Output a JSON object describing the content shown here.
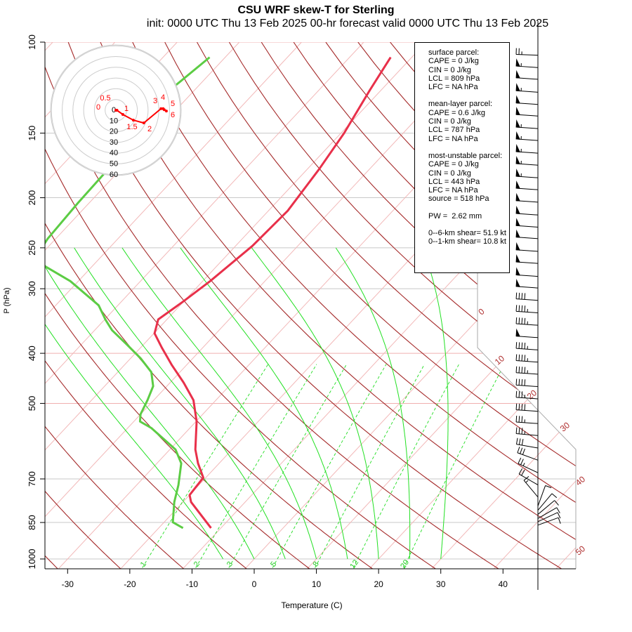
{
  "title": "CSU WRF skew-T for Sterling",
  "subtitle": "init: 0000 UTC Thu 13 Feb 2025    00-hr forecast valid 0000 UTC Thu 13 Feb 2025",
  "info_box": {
    "surface": [
      "surface parcel:",
      "CAPE = 0 J/kg",
      "CIN = 0 J/kg",
      "LCL = 809 hPa",
      "LFC = NA hPa"
    ],
    "mean_layer": [
      "mean-layer parcel:",
      "CAPE = 0.6 J/kg",
      "CIN = 0 J/kg",
      "LCL = 787 hPa",
      "LFC = NA hPa"
    ],
    "most_unstable": [
      "most-unstable parcel:",
      "CAPE = 0 J/kg",
      "CIN = 0 J/kg",
      "LCL = 443 hPa",
      "LFC = NA hPa",
      "source = 518 hPa"
    ],
    "pw": "PW =  2.62 mm",
    "shear": [
      "0--6-km shear= 51.9 kt",
      "0--1-km shear= 10.8 kt"
    ]
  },
  "chart_data": {
    "type": "skew-t",
    "xlabel": "Temperature (C)",
    "ylabel": "P (hPa)",
    "x_ticks": [
      -30,
      -20,
      -10,
      0,
      10,
      20,
      30,
      40
    ],
    "y_ticks": [
      100,
      150,
      200,
      250,
      300,
      400,
      500,
      700,
      850,
      1000
    ],
    "isotherm_labels": [
      0,
      10,
      20,
      30,
      40,
      50
    ],
    "mixing_ratio_labels": [
      1,
      2,
      3,
      5,
      8,
      12,
      20
    ],
    "temperature": {
      "color": "#e8304a",
      "p": [
        871,
        776,
        752,
        696,
        653,
        614,
        542,
        493,
        456,
        422,
        390,
        366,
        344,
        318,
        290,
        248,
        212,
        176,
        150,
        124,
        107
      ],
      "t": [
        -11.6,
        -18.7,
        -20.0,
        -20.4,
        -23.4,
        -25.9,
        -29.9,
        -33.6,
        -37.8,
        -42.3,
        -46.6,
        -49.9,
        -51.4,
        -50.1,
        -48.8,
        -47.3,
        -46.9,
        -48.1,
        -49.5,
        -51.8,
        -53.4
      ]
    },
    "dewpoint": {
      "color": "#5ccc44",
      "p": [
        871,
        849,
        776,
        719,
        653,
        614,
        558,
        542,
        525,
        493,
        463,
        435,
        409,
        384,
        361,
        344,
        323,
        290,
        272,
        262,
        240,
        205,
        178,
        124,
        107
      ],
      "t": [
        -16.1,
        -18.6,
        -21.4,
        -23.3,
        -26.1,
        -29.1,
        -36.2,
        -39.0,
        -40.0,
        -41.0,
        -42.2,
        -44.6,
        -48.4,
        -52.8,
        -57.2,
        -59.9,
        -63.1,
        -71.3,
        -77.4,
        -80.4,
        -81.3,
        -81.8,
        -82.0,
        -84.0,
        -82.5
      ]
    },
    "hodograph": {
      "rings_kt": [
        10,
        20,
        30,
        40,
        50,
        60
      ],
      "ring_labels": [
        "0",
        "10",
        "20",
        "30",
        "40",
        "50",
        "60"
      ],
      "points": [
        {
          "label": "0",
          "u": 0,
          "v": 0
        },
        {
          "label": "0.5",
          "u": 1,
          "v": 0
        },
        {
          "label": "1",
          "u": 6.5,
          "v": -3.9
        },
        {
          "label": "1.5",
          "u": 16.3,
          "v": -9.2
        },
        {
          "label": "2",
          "u": 26,
          "v": -11.8
        },
        {
          "label": "3",
          "u": 42,
          "v": 1.5
        },
        {
          "label": "4",
          "u": 44,
          "v": 1.5
        },
        {
          "label": "5",
          "u": 45,
          "v": 0.5
        },
        {
          "label": "6",
          "u": 47,
          "v": -0.7
        }
      ]
    },
    "wind_barbs": [
      {
        "p": 106,
        "dir": 272,
        "spd": 25
      },
      {
        "p": 112,
        "dir": 274,
        "spd": 55
      },
      {
        "p": 118,
        "dir": 274,
        "spd": 50
      },
      {
        "p": 125,
        "dir": 274,
        "spd": 55
      },
      {
        "p": 132,
        "dir": 274,
        "spd": 50
      },
      {
        "p": 139,
        "dir": 274,
        "spd": 50
      },
      {
        "p": 147,
        "dir": 274,
        "spd": 55
      },
      {
        "p": 155,
        "dir": 274,
        "spd": 55
      },
      {
        "p": 164,
        "dir": 274,
        "spd": 55
      },
      {
        "p": 173,
        "dir": 274,
        "spd": 55
      },
      {
        "p": 183,
        "dir": 274,
        "spd": 55
      },
      {
        "p": 193,
        "dir": 274,
        "spd": 50
      },
      {
        "p": 204,
        "dir": 274,
        "spd": 50
      },
      {
        "p": 216,
        "dir": 274,
        "spd": 50
      },
      {
        "p": 228,
        "dir": 274,
        "spd": 50
      },
      {
        "p": 240,
        "dir": 274,
        "spd": 50
      },
      {
        "p": 254,
        "dir": 274,
        "spd": 50
      },
      {
        "p": 268,
        "dir": 274,
        "spd": 50
      },
      {
        "p": 284,
        "dir": 274,
        "spd": 50
      },
      {
        "p": 299,
        "dir": 274,
        "spd": 50
      },
      {
        "p": 316,
        "dir": 274,
        "spd": 40
      },
      {
        "p": 334,
        "dir": 274,
        "spd": 45
      },
      {
        "p": 353,
        "dir": 274,
        "spd": 45
      },
      {
        "p": 373,
        "dir": 274,
        "spd": 50
      },
      {
        "p": 394,
        "dir": 274,
        "spd": 45
      },
      {
        "p": 416,
        "dir": 274,
        "spd": 45
      },
      {
        "p": 439,
        "dir": 274,
        "spd": 45
      },
      {
        "p": 464,
        "dir": 274,
        "spd": 40
      },
      {
        "p": 490,
        "dir": 274,
        "spd": 35
      },
      {
        "p": 518,
        "dir": 274,
        "spd": 40
      },
      {
        "p": 547,
        "dir": 274,
        "spd": 35
      },
      {
        "p": 577,
        "dir": 275,
        "spd": 35
      },
      {
        "p": 610,
        "dir": 280,
        "spd": 30
      },
      {
        "p": 644,
        "dir": 290,
        "spd": 30
      },
      {
        "p": 681,
        "dir": 295,
        "spd": 25
      },
      {
        "p": 719,
        "dir": 300,
        "spd": 20
      },
      {
        "p": 759,
        "dir": 320,
        "spd": 15
      },
      {
        "p": 790,
        "dir": 20,
        "spd": 10
      },
      {
        "p": 805,
        "dir": 40,
        "spd": 10
      },
      {
        "p": 820,
        "dir": 50,
        "spd": 10
      },
      {
        "p": 835,
        "dir": 60,
        "spd": 10
      },
      {
        "p": 847,
        "dir": 65,
        "spd": 10
      },
      {
        "p": 860,
        "dir": 70,
        "spd": 10
      }
    ]
  }
}
